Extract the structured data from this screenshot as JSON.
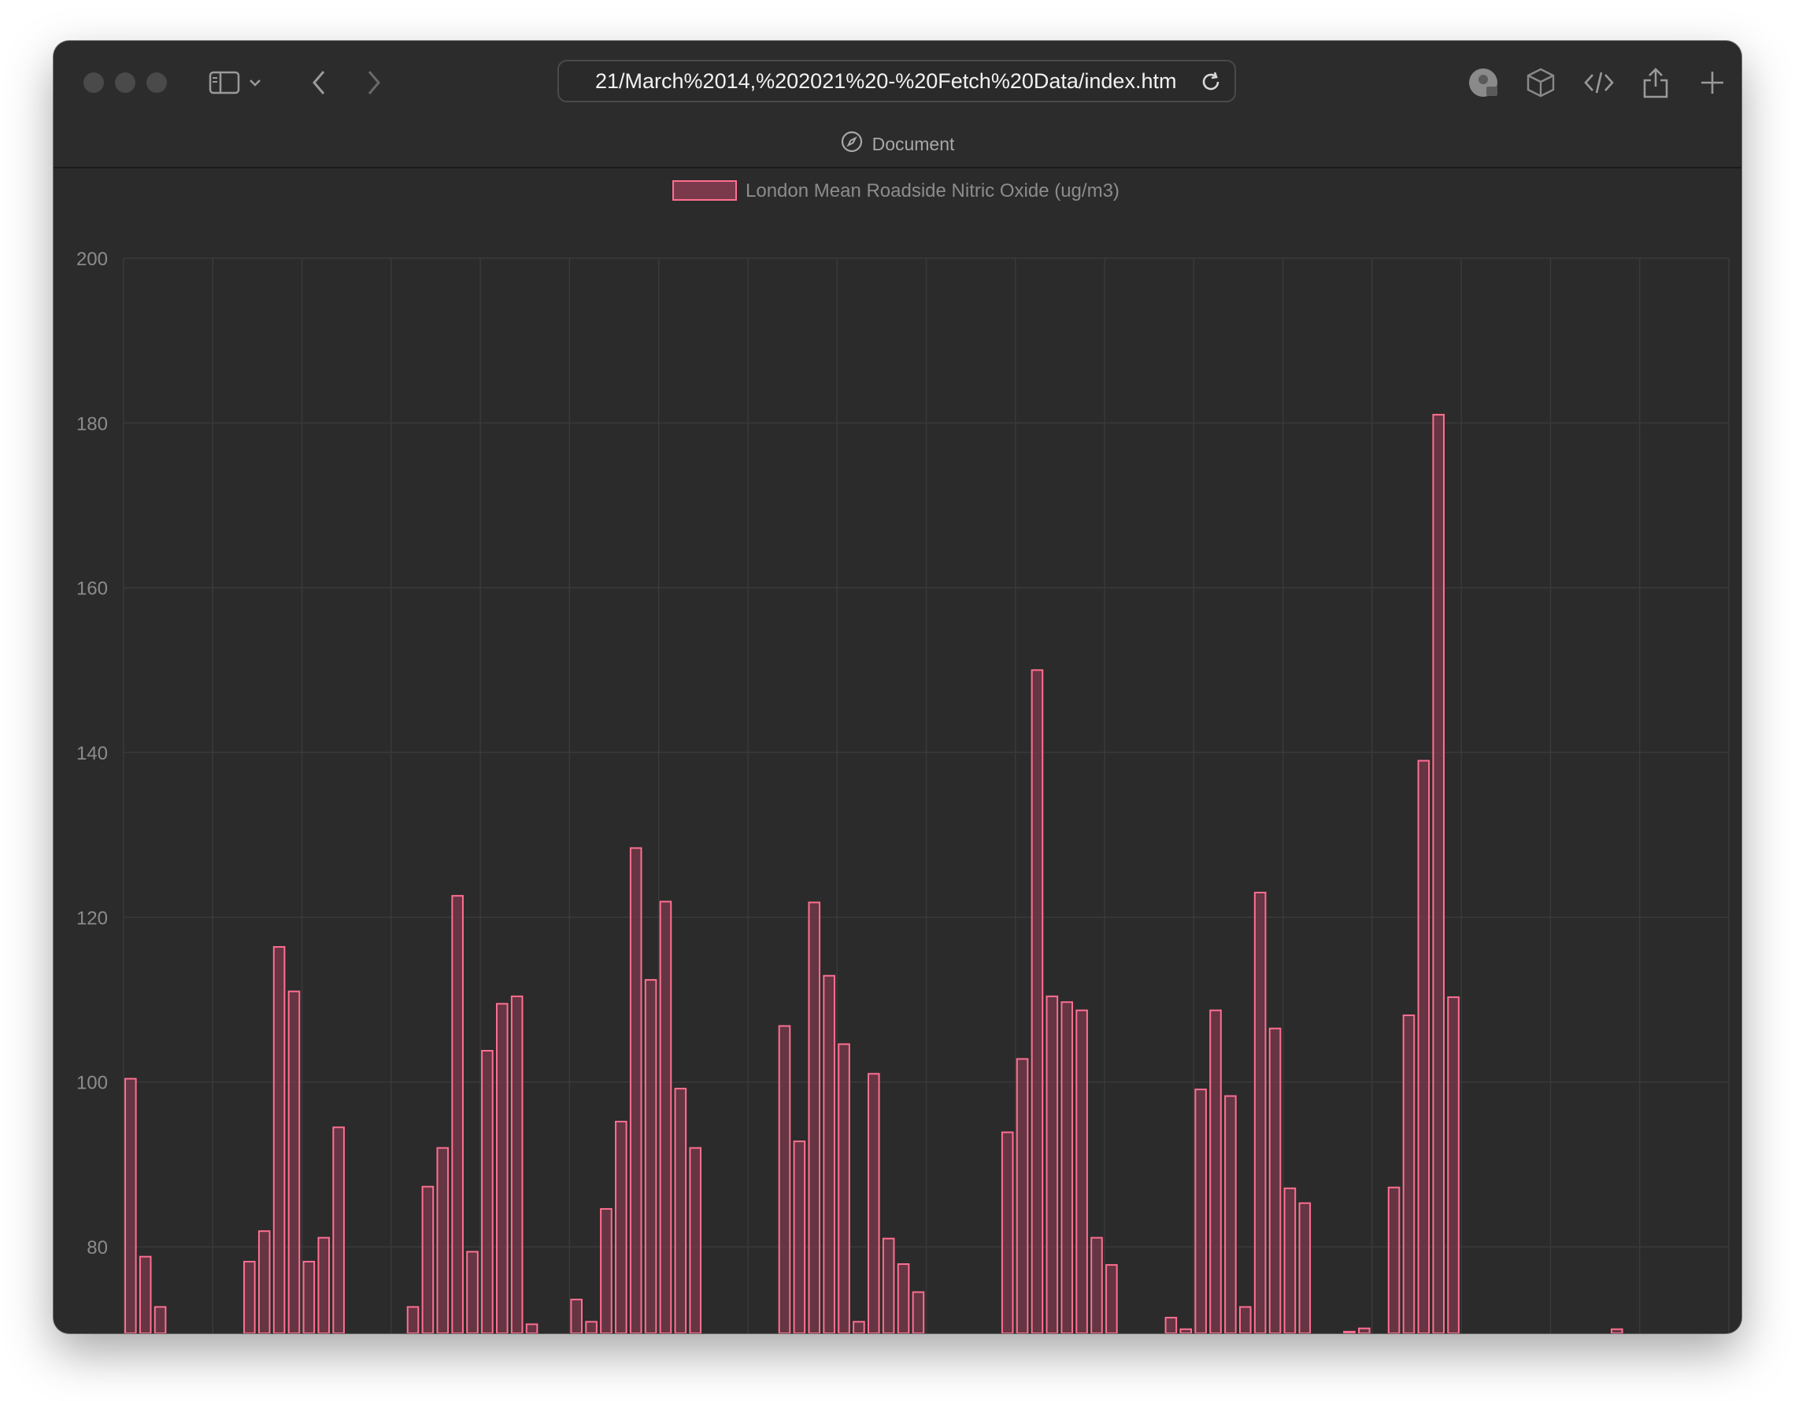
{
  "browser": {
    "url": "21/March%2014,%202021%20-%20Fetch%20Data/index.html",
    "tab_title": "Document",
    "icons": [
      "sidebar-icon",
      "chevron-down-icon",
      "back-icon",
      "forward-icon",
      "reload-icon",
      "extension-icon",
      "cube-icon",
      "code-icon",
      "share-icon",
      "plus-icon",
      "compass-icon"
    ]
  },
  "chart_data": {
    "type": "bar",
    "legend": {
      "label": "London Mean Roadside Nitric Oxide (ug/m3)",
      "position": "top-center"
    },
    "colors": {
      "bar_fill": "#7a3a4c",
      "bar_border": "#ff6f91",
      "grid": "#3a3a3a",
      "tick": "#8c8c8c"
    },
    "ylim": [
      69.5,
      200
    ],
    "yticks": [
      80,
      100,
      120,
      140,
      160,
      180,
      200
    ],
    "grid": true,
    "x_slots": 108,
    "xlabel": "",
    "ylabel": "",
    "values": [
      100.4,
      78.8,
      72.7,
      null,
      null,
      null,
      null,
      null,
      78.2,
      81.9,
      116.4,
      111.0,
      78.2,
      81.1,
      94.5,
      null,
      null,
      null,
      null,
      72.7,
      87.3,
      92.0,
      122.6,
      79.4,
      103.8,
      109.5,
      110.4,
      70.6,
      null,
      null,
      73.6,
      70.9,
      84.6,
      95.2,
      128.4,
      112.4,
      121.9,
      99.2,
      92.0,
      null,
      null,
      null,
      null,
      null,
      106.8,
      92.8,
      121.8,
      112.9,
      104.6,
      70.9,
      101.0,
      81.0,
      77.9,
      74.5,
      null,
      null,
      null,
      null,
      null,
      93.9,
      102.8,
      150.0,
      110.4,
      109.7,
      108.7,
      81.1,
      77.8,
      null,
      null,
      null,
      71.4,
      70.0,
      99.1,
      108.7,
      98.3,
      72.7,
      123.0,
      106.5,
      87.1,
      85.3,
      null,
      null,
      69.7,
      70.1,
      null,
      87.2,
      108.1,
      139.0,
      181.0,
      110.3,
      null,
      null,
      null,
      null,
      null,
      null,
      null,
      null,
      null,
      null,
      70.0,
      null,
      null,
      null,
      null,
      null,
      null,
      null
    ]
  }
}
